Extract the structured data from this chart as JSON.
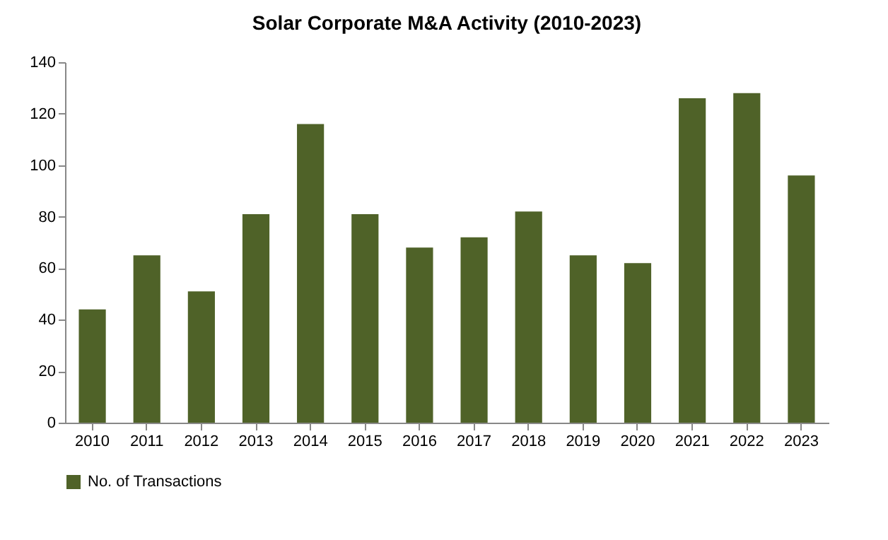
{
  "chart_data": {
    "type": "bar",
    "title": "Solar Corporate M&A Activity (2010-2023)",
    "categories": [
      "2010",
      "2011",
      "2012",
      "2013",
      "2014",
      "2015",
      "2016",
      "2017",
      "2018",
      "2019",
      "2020",
      "2021",
      "2022",
      "2023"
    ],
    "series": [
      {
        "name": "No. of Transactions",
        "color": "#4f6228",
        "values": [
          44,
          65,
          51,
          81,
          116,
          81,
          68,
          72,
          82,
          65,
          62,
          126,
          128,
          96
        ]
      }
    ],
    "ylim": [
      0,
      140
    ],
    "yticks": [
      0,
      20,
      40,
      60,
      80,
      100,
      120,
      140
    ],
    "grid": false,
    "legend": "bottom"
  }
}
